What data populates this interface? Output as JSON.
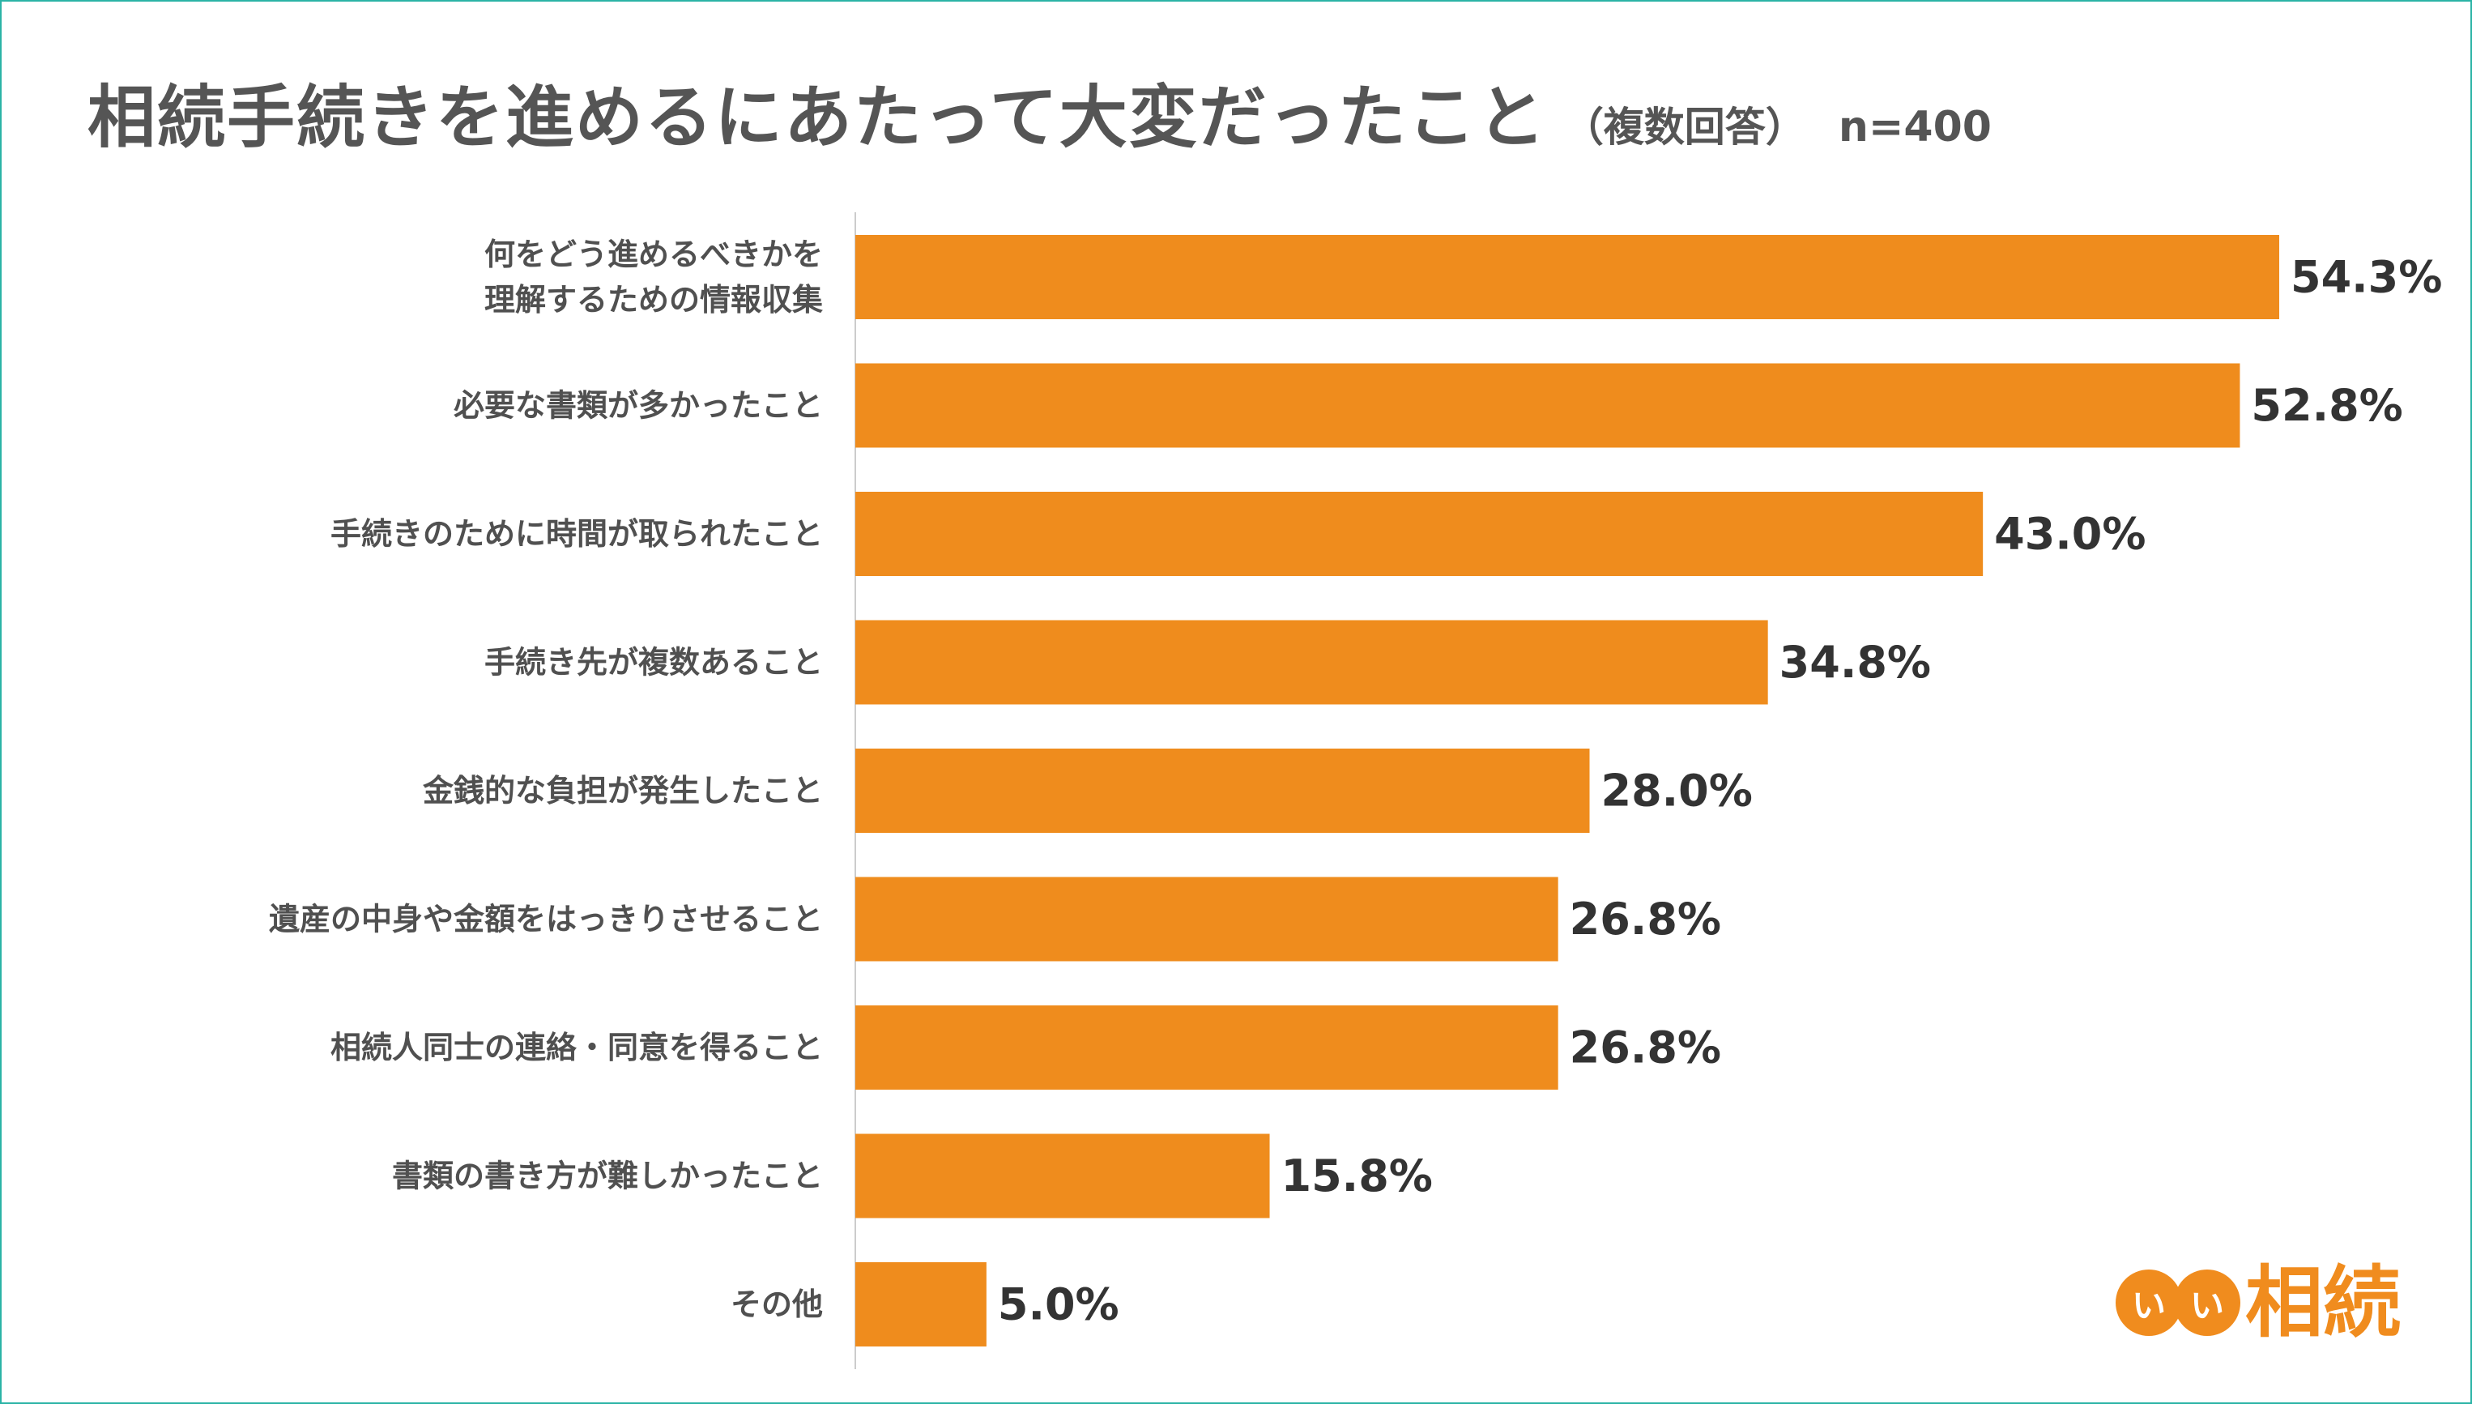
{
  "colors": {
    "bar": "#ef8c1d",
    "border": "#2ab3a6",
    "axis": "#cccccc"
  },
  "header": {
    "title": "相続手続きを進めるにあたって大変だったこと",
    "subtitle": "（複数回答）",
    "sample": "n=400"
  },
  "logo": {
    "circle_1": "い",
    "circle_2": "い",
    "text": "相続"
  },
  "chart_data": {
    "type": "bar",
    "orientation": "horizontal",
    "title": "相続手続きを進めるにあたって大変だったこと",
    "xlim": [
      0,
      60
    ],
    "grid": false,
    "categories": [
      [
        "何をどう進めるべきかを",
        "理解するための情報収集"
      ],
      [
        "必要な書類が多かったこと"
      ],
      [
        "手続きのために時間が取られたこと"
      ],
      [
        "手続き先が複数あること"
      ],
      [
        "金銭的な負担が発生したこと"
      ],
      [
        "遺産の中身や金額をはっきりさせること"
      ],
      [
        "相続人同士の連絡・同意を得ること"
      ],
      [
        "書類の書き方が難しかったこと"
      ],
      [
        "その他"
      ]
    ],
    "values": [
      54.3,
      52.8,
      43.0,
      34.8,
      28.0,
      26.8,
      26.8,
      15.8,
      5.0
    ],
    "value_labels": [
      "54.3%",
      "52.8%",
      "43.0%",
      "34.8%",
      "28.0%",
      "26.8%",
      "26.8%",
      "15.8%",
      "5.0%"
    ]
  }
}
